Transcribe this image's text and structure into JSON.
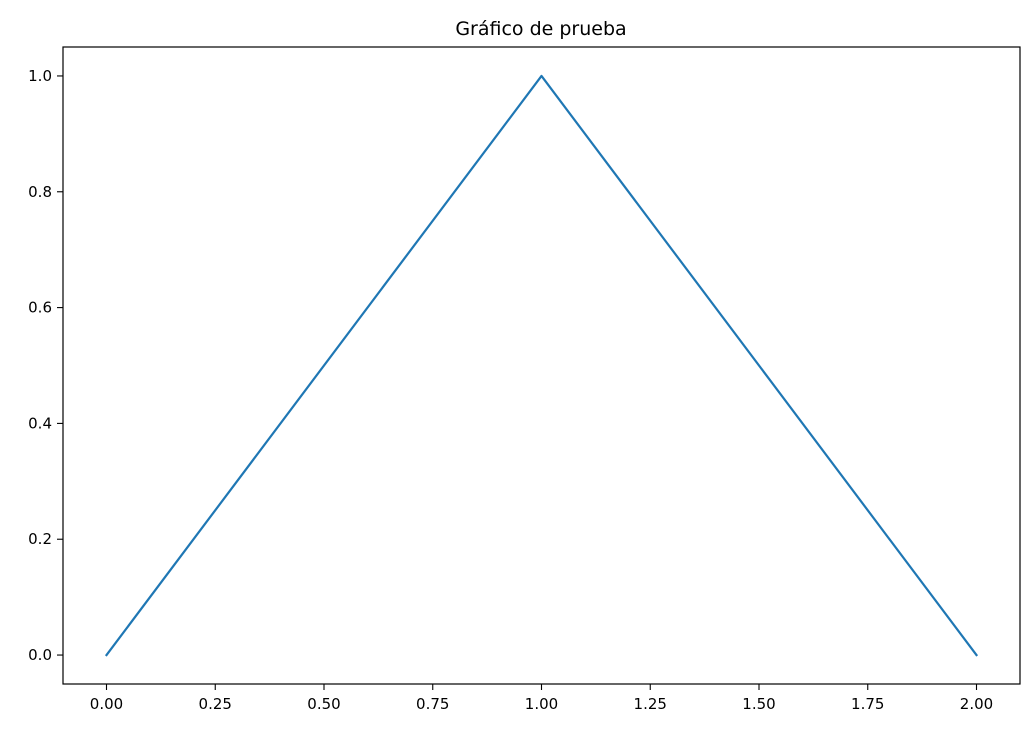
{
  "chart_data": {
    "type": "line",
    "title": "Gráfico de prueba",
    "xlabel": "",
    "ylabel": "",
    "x": [
      0,
      1,
      2
    ],
    "series": [
      {
        "values": [
          0,
          1,
          0
        ],
        "color": "#1f77b4"
      }
    ],
    "xlim": [
      -0.1,
      2.1
    ],
    "ylim": [
      -0.05,
      1.05
    ],
    "xticks": [
      "0.00",
      "0.25",
      "0.50",
      "0.75",
      "1.00",
      "1.25",
      "1.50",
      "1.75",
      "2.00"
    ],
    "yticks": [
      "0.0",
      "0.2",
      "0.4",
      "0.6",
      "0.8",
      "1.0"
    ],
    "grid": false,
    "legend": "none"
  }
}
